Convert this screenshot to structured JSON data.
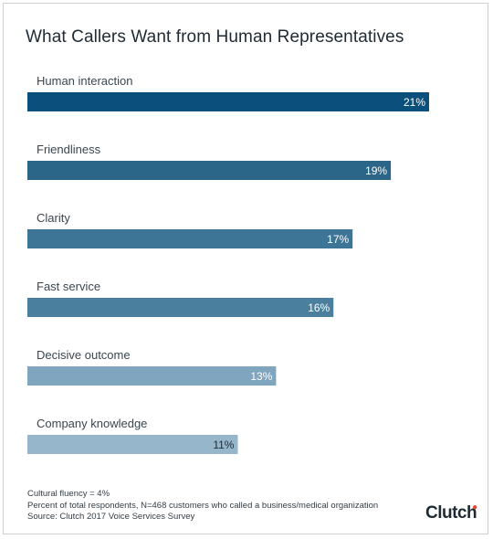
{
  "chart_data": {
    "type": "bar",
    "orientation": "horizontal",
    "title": "What Callers Want from Human Representatives",
    "categories": [
      "Human interaction",
      "Friendliness",
      "Clarity",
      "Fast service",
      "Decisive outcome",
      "Company knowledge"
    ],
    "values": [
      21,
      19,
      17,
      16,
      13,
      11
    ],
    "value_labels": [
      "21%",
      "19%",
      "17%",
      "16%",
      "13%",
      "11%"
    ],
    "bar_colors": [
      "#0b4f7c",
      "#2b6689",
      "#3d7597",
      "#4a7f9e",
      "#7fa5bf",
      "#96b6cc"
    ],
    "value_label_colors": [
      "#ffffff",
      "#ffffff",
      "#ffffff",
      "#ffffff",
      "#ffffff",
      "#1f2a33"
    ],
    "xlim": [
      0,
      21
    ],
    "grid": false
  },
  "footnotes": {
    "line1": "Cultural fluency = 4%",
    "line2": "Percent of total respondents, N=468 customers who called a business/medical organization",
    "line3": "Source: Clutch 2017 Voice Services Survey"
  },
  "logo": {
    "text": "Clutch",
    "accent_color": "#e8452f"
  }
}
